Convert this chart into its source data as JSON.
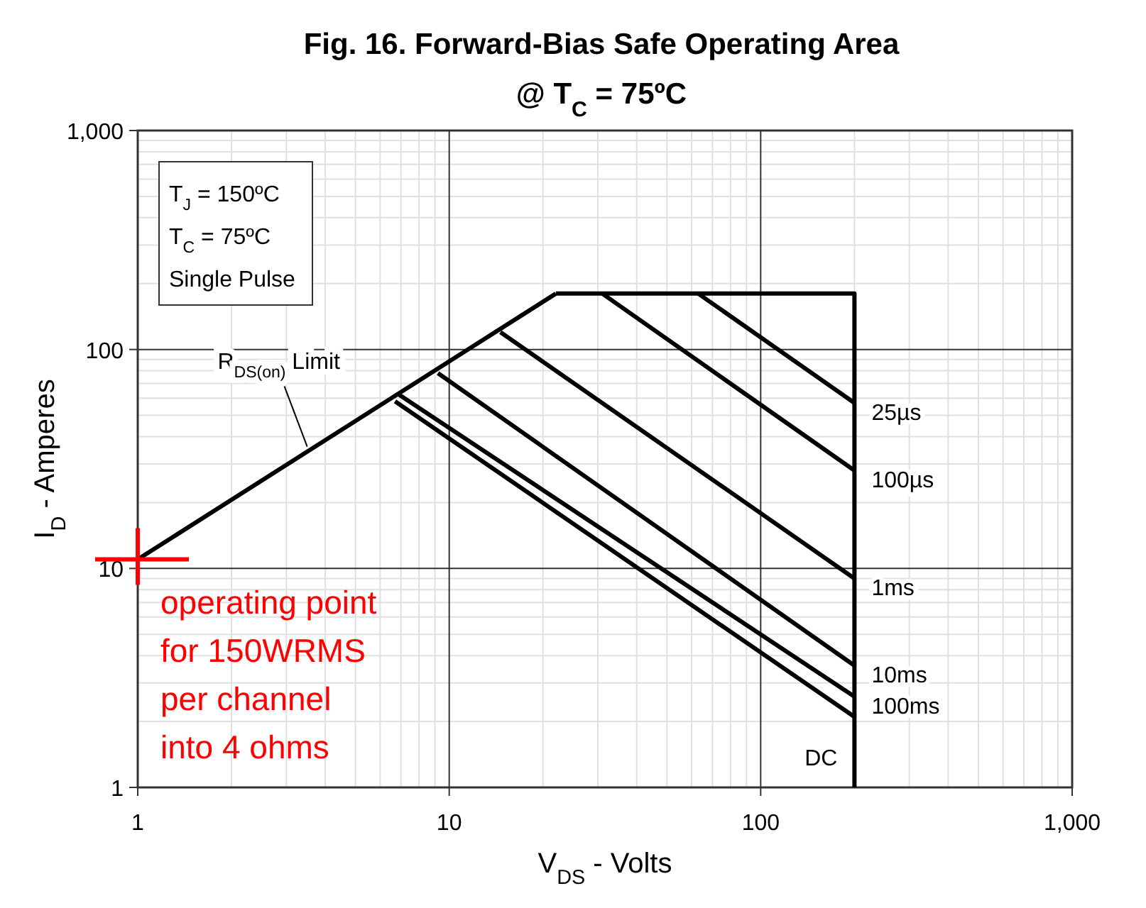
{
  "chart_data": {
    "type": "line",
    "title": "Fig. 16. Forward-Bias Safe Operating Area",
    "subtitle": "@ T$_{C}$ = 75ºC",
    "xlabel": "V$_{DS}$ - Volts",
    "ylabel": "I$_{D}$ - Amperes",
    "log": "xy",
    "grid": true,
    "xlim": [
      1,
      1000
    ],
    "ylim": [
      1,
      1000
    ],
    "xticks": [
      1,
      10,
      100,
      {
        "value": 1000,
        "label": "1,000"
      }
    ],
    "yticks": [
      1,
      10,
      100,
      {
        "value": 1000,
        "label": "1,000"
      }
    ],
    "series": [
      {
        "color": "#000000",
        "x": [
          1,
          22
        ],
        "values": [
          11,
          180
        ]
      },
      {
        "color": "#000000",
        "x": [
          22,
          200,
          200
        ],
        "values": [
          180,
          180,
          1
        ]
      },
      {
        "name": "25µs",
        "color": "#000000",
        "x": [
          63,
          200
        ],
        "values": [
          180,
          57
        ]
      },
      {
        "name": "100µs",
        "color": "#000000",
        "x": [
          31,
          200
        ],
        "values": [
          180,
          28
        ]
      },
      {
        "name": "1ms",
        "color": "#000000",
        "x": [
          14.6,
          200
        ],
        "values": [
          120,
          9
        ]
      },
      {
        "name": "10ms",
        "color": "#000000",
        "x": [
          9.2,
          200
        ],
        "values": [
          78,
          3.6
        ]
      },
      {
        "name": "100ms",
        "color": "#000000",
        "x": [
          6.8,
          200
        ],
        "values": [
          63,
          2.6
        ]
      },
      {
        "name": "DC",
        "color": "#000000",
        "x": [
          6.7,
          200
        ],
        "values": [
          58,
          2.1
        ]
      }
    ],
    "annotations": [
      "T$_{J}$ = 150ºC",
      "T$_{C}$ = 75ºC",
      "Single Pulse",
      {
        "text": "R$_{DS(on)}$ Limit",
        "x": 3.5,
        "y": 36
      },
      {
        "text": "operating point for 150WRMS per channel into 4 ohms",
        "x": 1,
        "y": 11
      }
    ]
  }
}
